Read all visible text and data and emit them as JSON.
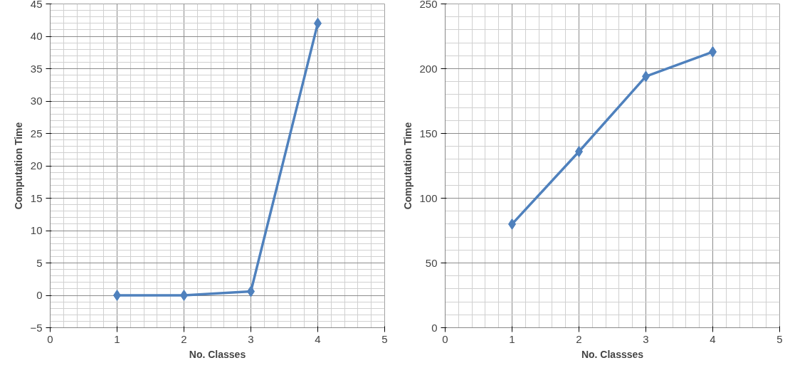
{
  "chart_data": [
    {
      "type": "line",
      "xlabel": "No. Classes",
      "ylabel": "Computation Time",
      "x": [
        1,
        2,
        3,
        4
      ],
      "series": [
        {
          "color": "#4f81bd",
          "values": [
            0,
            0,
            0.6,
            42
          ]
        }
      ],
      "xlim": [
        0,
        5
      ],
      "xticks": [
        0,
        1,
        2,
        3,
        4,
        5
      ],
      "ylim": [
        -5,
        45
      ],
      "yticks": [
        -5,
        0,
        5,
        10,
        15,
        20,
        25,
        30,
        35,
        40,
        45
      ],
      "grid": true,
      "marker": "diamond",
      "line_style": "solid"
    },
    {
      "type": "line",
      "xlabel": "No. Classses",
      "ylabel": "Computation Time",
      "x": [
        1,
        2,
        3,
        4
      ],
      "series": [
        {
          "color": "#4f81bd",
          "values": [
            80,
            136,
            194,
            213
          ]
        }
      ],
      "xlim": [
        0,
        5
      ],
      "xticks": [
        0,
        1,
        2,
        3,
        4,
        5
      ],
      "ylim": [
        0,
        250
      ],
      "yticks": [
        0,
        50,
        100,
        150,
        200,
        250
      ],
      "grid": true,
      "marker": "diamond",
      "line_style": "solid"
    }
  ]
}
